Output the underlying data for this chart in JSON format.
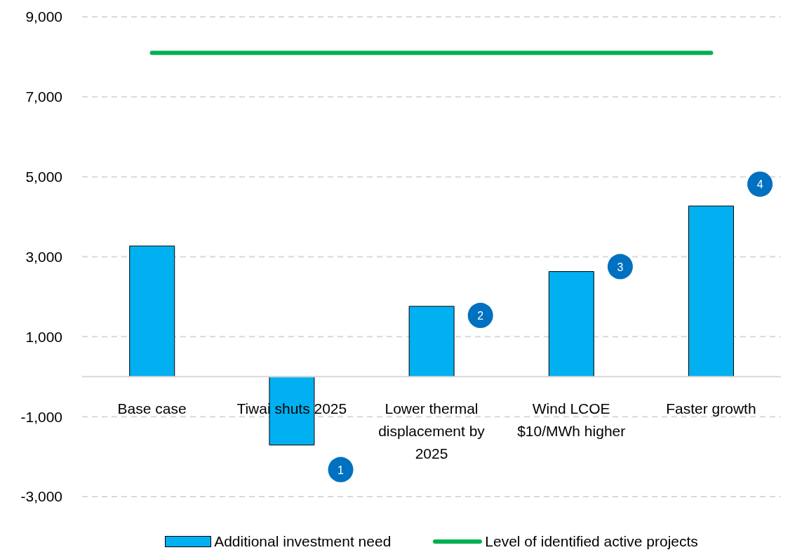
{
  "chart_data": {
    "type": "bar",
    "categories": [
      "Base case",
      "Tiwai shuts 2025",
      "Lower thermal displacement by 2025",
      "Wind LCOE $10/MWh higher",
      "Faster growth"
    ],
    "series": [
      {
        "name": "Additional investment need",
        "color": "#00b0f0",
        "values": [
          3270,
          -1710,
          1760,
          2630,
          4270
        ]
      },
      {
        "name": "Level of identified active projects",
        "type": "line",
        "color": "#00b050",
        "values": [
          8100,
          8100,
          8100,
          8100,
          8100
        ]
      }
    ],
    "ylim": [
      -3000,
      9000
    ],
    "yticks": [
      {
        "value": -3000,
        "label": "-3,000"
      },
      {
        "value": -1000,
        "label": "-1,000"
      },
      {
        "value": 1000,
        "label": "1,000"
      },
      {
        "value": 3000,
        "label": "3,000"
      },
      {
        "value": 5000,
        "label": "5,000"
      },
      {
        "value": 7000,
        "label": "7,000"
      },
      {
        "value": 9000,
        "label": "9,000"
      }
    ],
    "grid": "y",
    "legend": "bottom",
    "marker": "none",
    "annotations": [
      "1",
      "2",
      "3",
      "4"
    ]
  }
}
